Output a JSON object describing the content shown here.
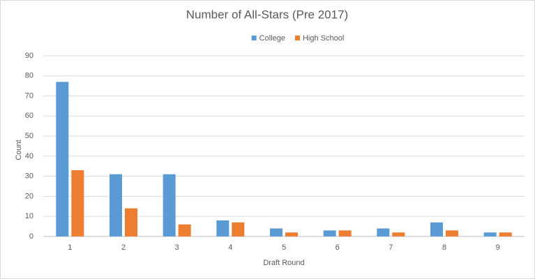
{
  "chart_data": {
    "type": "bar",
    "title": "Number of All-Stars (Pre 2017)",
    "x_label": "Draft Round",
    "y_label": "Count",
    "categories": [
      "1",
      "2",
      "3",
      "4",
      "5",
      "6",
      "7",
      "8",
      "9"
    ],
    "series": [
      {
        "name": "College",
        "color": "#5b9bd5",
        "values": [
          77,
          31,
          31,
          8,
          4,
          3,
          4,
          7,
          2
        ]
      },
      {
        "name": "High School",
        "color": "#ed7d31",
        "values": [
          33,
          14,
          6,
          7,
          2,
          3,
          2,
          3,
          2
        ]
      }
    ],
    "ylim": [
      0,
      90
    ],
    "yticks": [
      0,
      10,
      20,
      30,
      40,
      50,
      60,
      70,
      80,
      90
    ],
    "grid": true,
    "legend": "top"
  }
}
